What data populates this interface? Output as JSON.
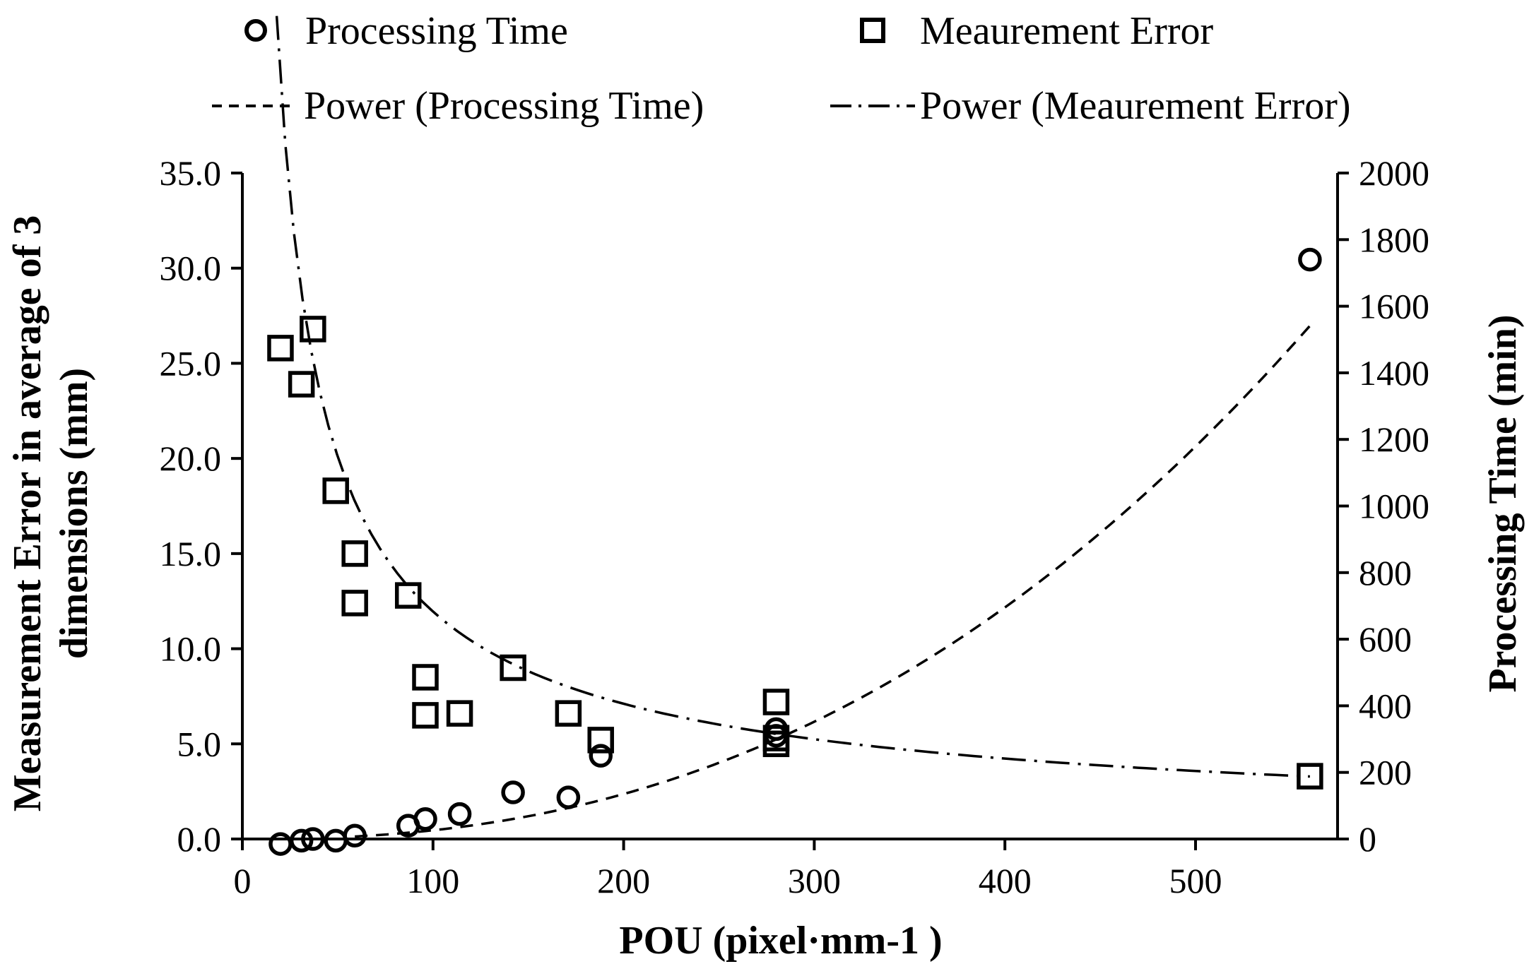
{
  "chart_data": {
    "type": "scatter",
    "title": "",
    "xlabel": "POU (pixel·mm-1 )",
    "ylabel_left": "Measurement Error in average of 3 dimensions (mm)",
    "ylabel_left_lines": [
      "Measurement Error in average of 3",
      "dimensions (mm)"
    ],
    "ylabel_right": "Processing Time (min)",
    "xlim": [
      0,
      575
    ],
    "ylim_left": [
      0,
      35
    ],
    "ylim_right": [
      0,
      2000
    ],
    "x_ticks": [
      "0",
      "100",
      "200",
      "300",
      "400",
      "500"
    ],
    "x_tick_values": [
      0,
      100,
      200,
      300,
      400,
      500
    ],
    "y_left_ticks": [
      "0.0",
      "5.0",
      "10.0",
      "15.0",
      "20.0",
      "25.0",
      "30.0",
      "35.0"
    ],
    "y_left_tick_values": [
      0,
      5,
      10,
      15,
      20,
      25,
      30,
      35
    ],
    "y_right_ticks": [
      "0",
      "200",
      "400",
      "600",
      "800",
      "1000",
      "1200",
      "1400",
      "1600",
      "1800",
      "2000"
    ],
    "y_right_tick_values": [
      0,
      200,
      400,
      600,
      800,
      1000,
      1200,
      1400,
      1600,
      1800,
      2000
    ],
    "legend_position": "top",
    "series": [
      {
        "name": "Processing Time",
        "marker": "circle",
        "axis": "right",
        "x": [
          20,
          31,
          37,
          49,
          59,
          87,
          96,
          114,
          142,
          171,
          188,
          280,
          280,
          560
        ],
        "y": [
          -15,
          -5,
          0,
          -5,
          10,
          40,
          60,
          75,
          140,
          125,
          250,
          310,
          330,
          1740
        ]
      },
      {
        "name": "Meaurement Error",
        "marker": "square",
        "axis": "left",
        "x": [
          20,
          31,
          37,
          49,
          59,
          59,
          87,
          96,
          96,
          114,
          142,
          171,
          188,
          280,
          280,
          280,
          560
        ],
        "y": [
          25.8,
          23.9,
          26.8,
          18.3,
          15.0,
          12.4,
          12.8,
          8.5,
          6.5,
          6.6,
          9.0,
          6.6,
          5.2,
          7.2,
          5.3,
          5.0,
          3.3
        ]
      }
    ],
    "trendlines": [
      {
        "name": "Power (Processing Time)",
        "type": "power",
        "axis": "right",
        "style": "dashed",
        "coefficient": 0.000488,
        "exponent": 2.365,
        "x_range": [
          59,
          560
        ]
      },
      {
        "name": "Power (Meaurement Error)",
        "type": "power",
        "axis": "left",
        "style": "dash-dot",
        "coefficient": 378,
        "exponent": -0.75,
        "x_range": [
          18,
          560
        ]
      }
    ]
  }
}
